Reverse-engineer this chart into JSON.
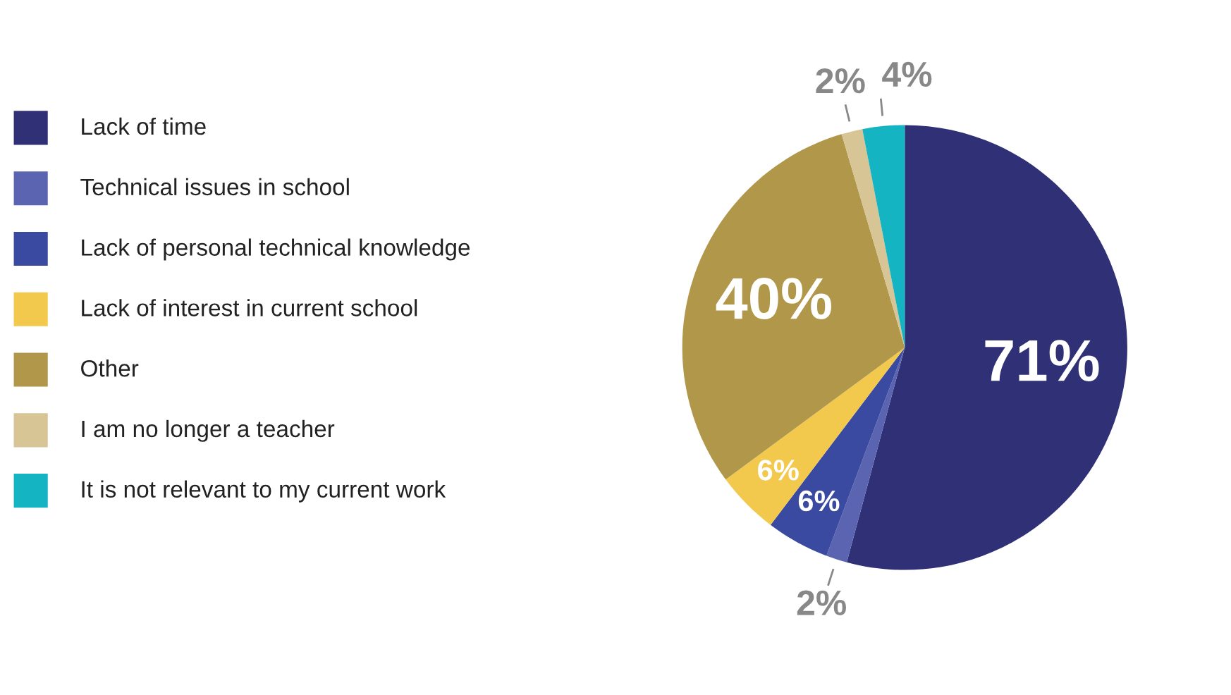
{
  "chart_data": {
    "type": "pie",
    "categories": [
      "Lack of time",
      "Technical issues in school",
      "Lack of personal technical knowledge",
      "Lack of interest in current school",
      "Other",
      "I am no longer a teacher",
      "It is not relevant to my current work"
    ],
    "values": [
      71,
      2,
      6,
      6,
      40,
      2,
      4
    ],
    "value_labels": [
      "71%",
      "2%",
      "6%",
      "6%",
      "40%",
      "2%",
      "4%"
    ],
    "colors": [
      "#2f3075",
      "#5b64b1",
      "#3a4aa0",
      "#f3c94d",
      "#b0974a",
      "#d7c596",
      "#15b4c2"
    ],
    "legend": "left"
  }
}
